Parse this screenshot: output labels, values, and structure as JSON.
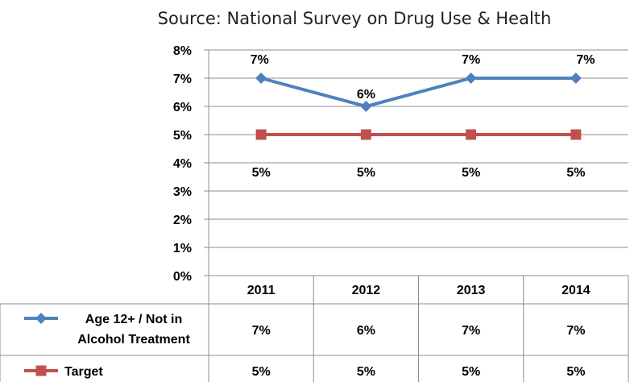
{
  "chart_data": {
    "type": "line",
    "subtitle": "Source: National Survey on Drug Use & Health",
    "categories": [
      "2011",
      "2012",
      "2013",
      "2014"
    ],
    "y_ticks": [
      "0%",
      "1%",
      "2%",
      "3%",
      "4%",
      "5%",
      "6%",
      "7%",
      "8%"
    ],
    "ylim": [
      0,
      8
    ],
    "y_unit": "%",
    "grid": true,
    "legend": "data-table",
    "series": [
      {
        "name": "Age 12+ / Not in Alcohol Treatment",
        "name_lines": [
          "Age 12+ / Not in",
          "Alcohol Treatment"
        ],
        "values": [
          7,
          6,
          7,
          7
        ],
        "labels": [
          "7%",
          "6%",
          "7%",
          "7%"
        ],
        "color": "#4f81bd",
        "marker": "diamond"
      },
      {
        "name": "Target",
        "name_lines": [
          "Target"
        ],
        "values": [
          5,
          5,
          5,
          5
        ],
        "labels": [
          "5%",
          "5%",
          "5%",
          "5%"
        ],
        "color": "#c0504d",
        "marker": "square"
      }
    ]
  }
}
